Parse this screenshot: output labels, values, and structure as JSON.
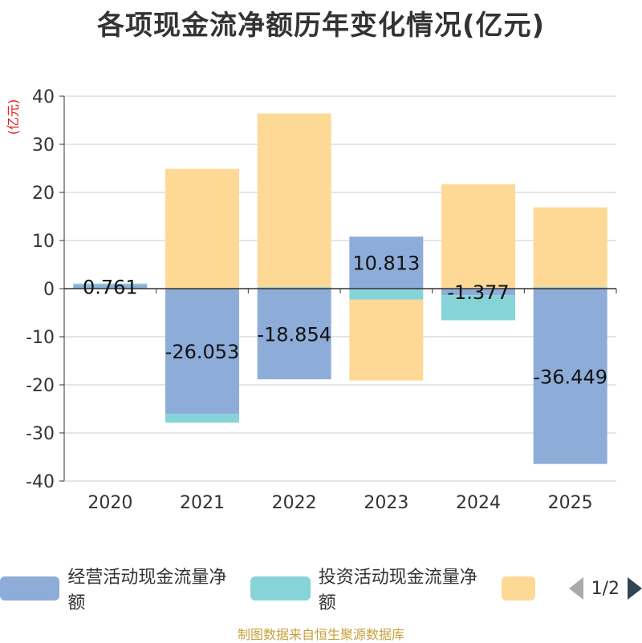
{
  "title": "各项现金流净额历年变化情况(亿元)",
  "source": "制图数据来自恒生聚源数据库",
  "legend_pager": "1/2",
  "chart_data": {
    "type": "bar",
    "stacked": true,
    "categories": [
      "2020",
      "2021",
      "2022",
      "2023",
      "2024",
      "2025"
    ],
    "ylabel": "(亿元)",
    "ylim": [
      -40,
      40
    ],
    "yticks": [
      40,
      30,
      20,
      10,
      0,
      -10,
      -20,
      -30,
      -40
    ],
    "grid": true,
    "legend_position": "bottom",
    "series": [
      {
        "name": "经营活动现金流量净额",
        "color": "#8eacd8",
        "values": [
          0.761,
          -26.053,
          -18.854,
          10.813,
          -1.377,
          -36.449
        ],
        "labels": [
          "0.761",
          "-26.053",
          "-18.854",
          "10.813",
          "-1.377",
          "-36.449"
        ]
      },
      {
        "name": "投资活动现金流量净额",
        "color": "#86d4d8",
        "values": [
          0.3,
          -1.8,
          0.3,
          -2.3,
          -5.2,
          0.3
        ]
      },
      {
        "name": "",
        "color": "#fed895",
        "values": [
          0.0,
          24.9,
          36.1,
          -16.8,
          21.7,
          16.6
        ]
      }
    ]
  }
}
